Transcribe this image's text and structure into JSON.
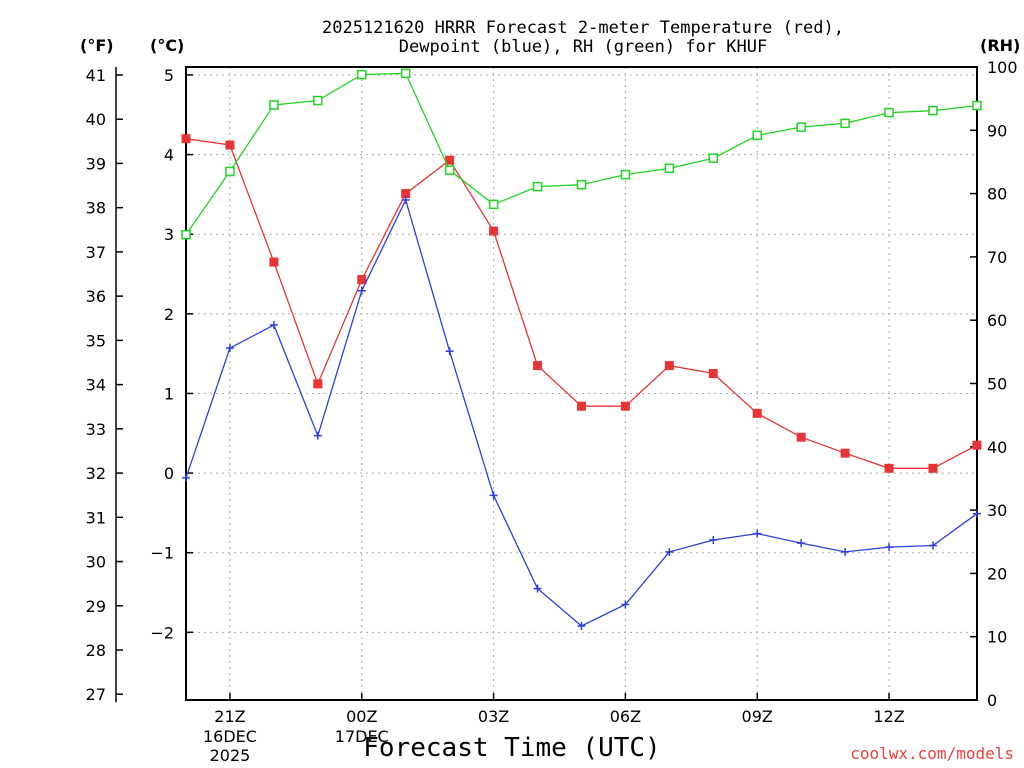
{
  "title_line1": "2025121620 HRRR Forecast 2-meter Temperature (red),",
  "title_line2": "Dewpoint (blue), RH (green) for KHUF",
  "unit_f": "(°F)",
  "unit_c": "(°C)",
  "unit_rh": "(RH)",
  "xlabel": "Forecast Time (UTC)",
  "credit": "coolwx.com/models",
  "colors": {
    "temperature": "#e83434",
    "dewpoint": "#2a3fe0",
    "rh": "#22d422",
    "grid": "#aaaaaa"
  },
  "chart_data": {
    "type": "line",
    "x_hours_utc": [
      "20Z 16DEC",
      "21Z",
      "22Z",
      "23Z",
      "00Z 17DEC",
      "01Z",
      "02Z",
      "03Z",
      "04Z",
      "05Z",
      "06Z",
      "07Z",
      "08Z",
      "09Z",
      "10Z",
      "11Z",
      "12Z",
      "13Z",
      "14Z"
    ],
    "x_ticks": [
      {
        "label": "21Z",
        "sub": [
          "16DEC",
          "2025"
        ],
        "index": 1
      },
      {
        "label": "00Z",
        "sub": [
          "17DEC"
        ],
        "index": 4
      },
      {
        "label": "03Z",
        "sub": [],
        "index": 7
      },
      {
        "label": "06Z",
        "sub": [],
        "index": 10
      },
      {
        "label": "09Z",
        "sub": [],
        "index": 13
      },
      {
        "label": "12Z",
        "sub": [],
        "index": 16
      }
    ],
    "left_axis_f": {
      "ticks": [
        27,
        28,
        29,
        30,
        31,
        32,
        33,
        34,
        35,
        36,
        37,
        38,
        39,
        40,
        41
      ]
    },
    "left_axis_c": {
      "ticks": [
        -2,
        -1,
        0,
        1,
        2,
        3,
        4,
        5
      ],
      "ylim": [
        -2.85,
        5.1
      ]
    },
    "right_axis_rh": {
      "ticks": [
        0,
        10,
        20,
        30,
        40,
        50,
        60,
        70,
        80,
        90,
        100
      ],
      "ylim": [
        0,
        100
      ]
    },
    "series": [
      {
        "name": "Temperature",
        "axis": "c",
        "marker": "square-filled",
        "values": [
          4.2,
          4.12,
          2.65,
          1.12,
          2.43,
          3.51,
          3.93,
          3.04,
          1.35,
          0.84,
          0.84,
          1.35,
          1.25,
          0.75,
          0.45,
          0.25,
          0.06,
          0.06,
          0.35
        ]
      },
      {
        "name": "Dewpoint",
        "axis": "c",
        "marker": "plus",
        "values": [
          -0.06,
          1.57,
          1.86,
          0.47,
          2.29,
          3.43,
          1.53,
          -0.28,
          -1.45,
          -1.92,
          -1.65,
          -0.99,
          -0.84,
          -0.76,
          -0.88,
          -0.99,
          -0.93,
          -0.91,
          -0.51
        ]
      },
      {
        "name": "RH",
        "axis": "rh",
        "marker": "square-open",
        "values": [
          73.5,
          83.5,
          94.0,
          94.7,
          98.8,
          99.0,
          83.7,
          78.3,
          81.1,
          81.4,
          83.0,
          84.0,
          85.6,
          89.2,
          90.5,
          91.1,
          92.8,
          93.1,
          93.9
        ]
      }
    ],
    "grid": true
  }
}
